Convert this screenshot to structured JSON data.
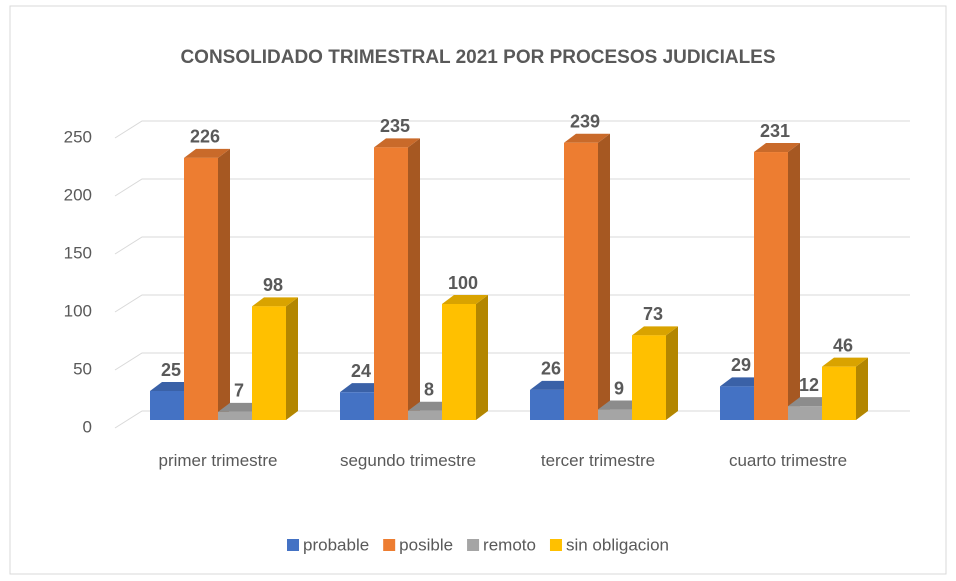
{
  "chart_data": {
    "type": "bar3d",
    "title": "CONSOLIDADO TRIMESTRAL 2021 POR PROCESOS JUDICIALES",
    "categories": [
      "primer trimestre",
      "segundo trimestre",
      "tercer trimestre",
      "cuarto trimestre"
    ],
    "series": [
      {
        "name": "probable",
        "color": "#4472c4",
        "values": [
          25,
          24,
          26,
          29
        ]
      },
      {
        "name": "posible",
        "color": "#ed7d31",
        "values": [
          226,
          235,
          239,
          231
        ]
      },
      {
        "name": "remoto",
        "color": "#a5a5a5",
        "values": [
          7,
          8,
          9,
          12
        ]
      },
      {
        "name": "sin obligacion",
        "color": "#ffc000",
        "values": [
          98,
          100,
          73,
          46
        ]
      }
    ],
    "ylim": [
      0,
      250
    ],
    "yticks": [
      0,
      50,
      100,
      150,
      200,
      250
    ],
    "grid": true,
    "legend": "bottom"
  }
}
